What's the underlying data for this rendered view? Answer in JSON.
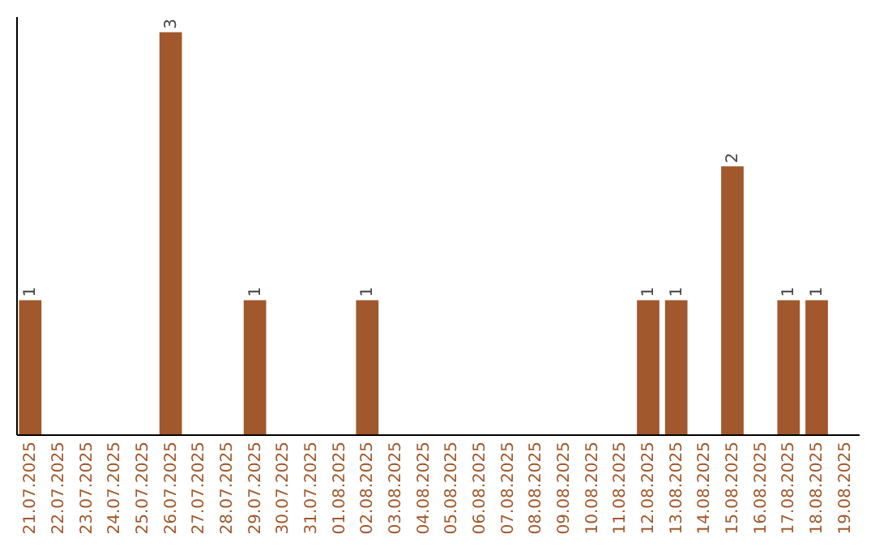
{
  "chart_data": {
    "type": "bar",
    "categories": [
      "21.07.2025",
      "22.07.2025",
      "23.07.2025",
      "24.07.2025",
      "25.07.2025",
      "26.07.2025",
      "27.07.2025",
      "28.07.2025",
      "29.07.2025",
      "30.07.2025",
      "31.07.2025",
      "01.08.2025",
      "02.08.2025",
      "03.08.2025",
      "04.08.2025",
      "05.08.2025",
      "06.08.2025",
      "07.08.2025",
      "08.08.2025",
      "09.08.2025",
      "10.08.2025",
      "11.08.2025",
      "12.08.2025",
      "13.08.2025",
      "14.08.2025",
      "15.08.2025",
      "16.08.2025",
      "17.08.2025",
      "18.08.2025",
      "19.08.2025"
    ],
    "values": [
      1,
      0,
      0,
      0,
      0,
      3,
      0,
      0,
      1,
      0,
      0,
      0,
      1,
      0,
      0,
      0,
      0,
      0,
      0,
      0,
      0,
      0,
      1,
      1,
      0,
      2,
      0,
      1,
      1,
      0
    ],
    "value_labels": [
      "1",
      null,
      null,
      null,
      null,
      "3",
      null,
      null,
      "1",
      null,
      null,
      null,
      "1",
      null,
      null,
      null,
      null,
      null,
      null,
      null,
      null,
      null,
      "1",
      "1",
      null,
      "2",
      null,
      "1",
      "1",
      null
    ],
    "color": "#a0582c",
    "tick_labels": "x"
  }
}
